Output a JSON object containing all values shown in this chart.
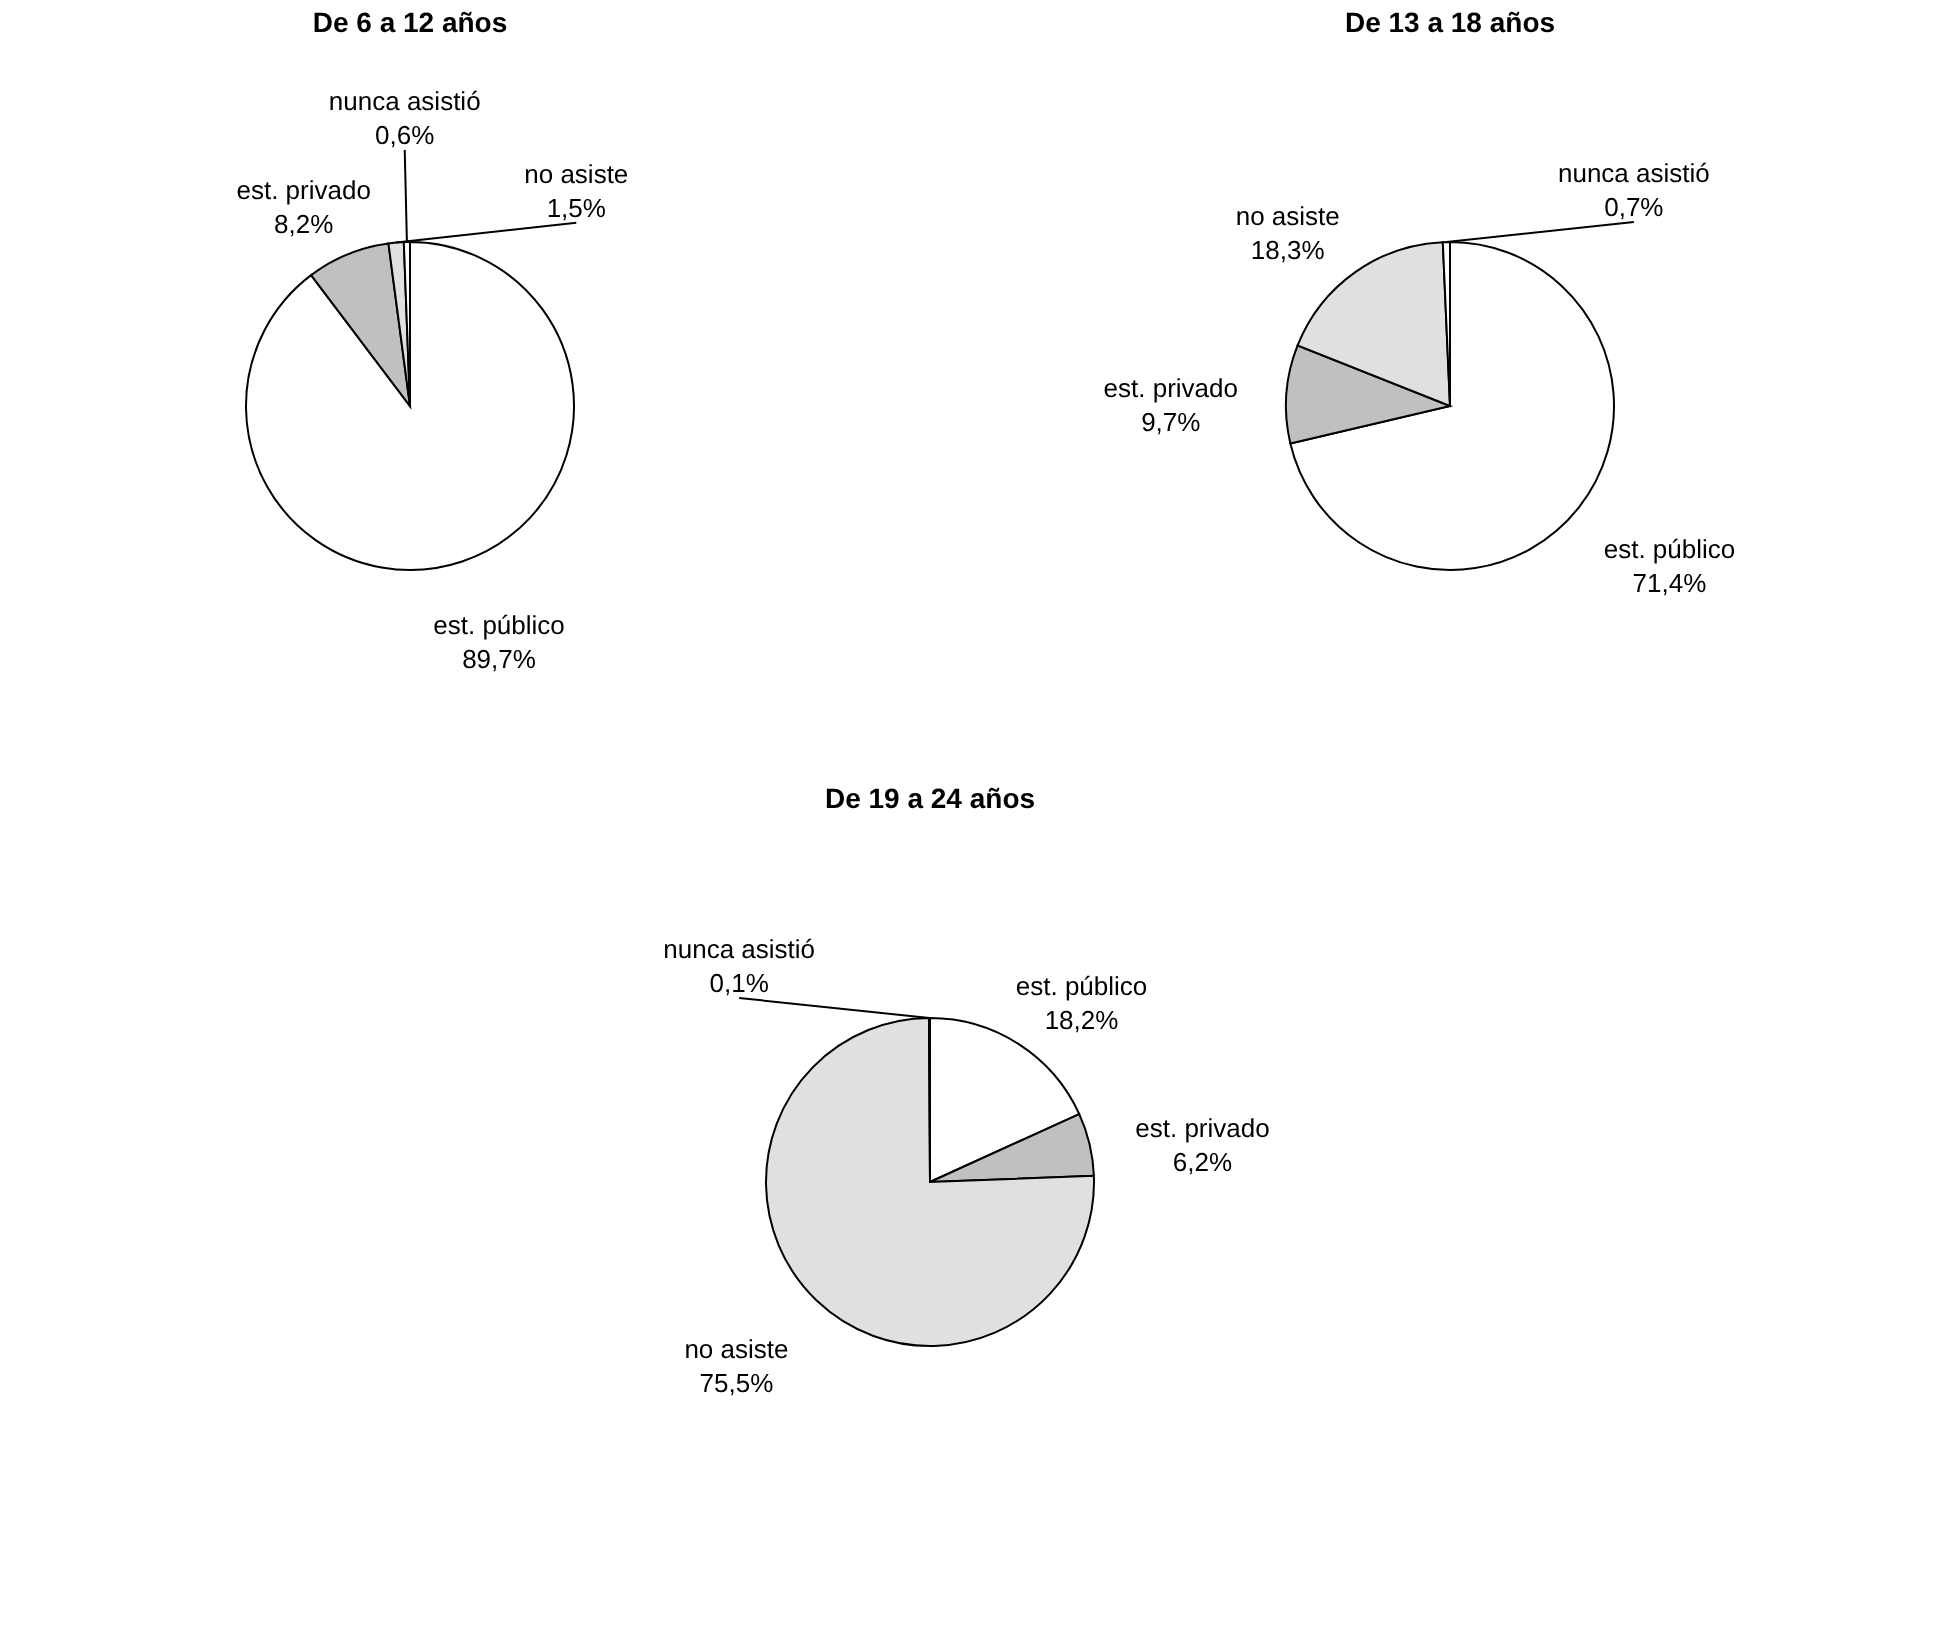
{
  "chart_data": [
    {
      "type": "pie",
      "title": "De 6 a 12 años",
      "categories": [
        "est. público",
        "est. privado",
        "no asiste",
        "nunca asistió"
      ],
      "values": [
        89.7,
        8.2,
        1.5,
        0.6
      ],
      "value_labels": [
        "89,7%",
        "8,2%",
        "1,5%",
        "0,6%"
      ],
      "colors": [
        "#ffffff",
        "#c0c0c0",
        "#e0e0e0",
        "#ffffff"
      ],
      "legend": false
    },
    {
      "type": "pie",
      "title": "De 13 a 18 años",
      "categories": [
        "est. público",
        "est. privado",
        "no asiste",
        "nunca asistió"
      ],
      "values": [
        71.4,
        9.7,
        18.3,
        0.7
      ],
      "value_labels": [
        "71,4%",
        "9,7%",
        "18,3%",
        "0,7%"
      ],
      "colors": [
        "#ffffff",
        "#c0c0c0",
        "#e0e0e0",
        "#ffffff"
      ],
      "legend": false
    },
    {
      "type": "pie",
      "title": "De 19 a 24 años",
      "categories": [
        "est. público",
        "est. privado",
        "no asiste",
        "nunca asistió"
      ],
      "values": [
        18.2,
        6.2,
        75.5,
        0.1
      ],
      "value_labels": [
        "18,2%",
        "6,2%",
        "75,5%",
        "0,1%"
      ],
      "colors": [
        "#ffffff",
        "#c0c0c0",
        "#e0e0e0",
        "#ffffff"
      ],
      "legend": false
    }
  ]
}
